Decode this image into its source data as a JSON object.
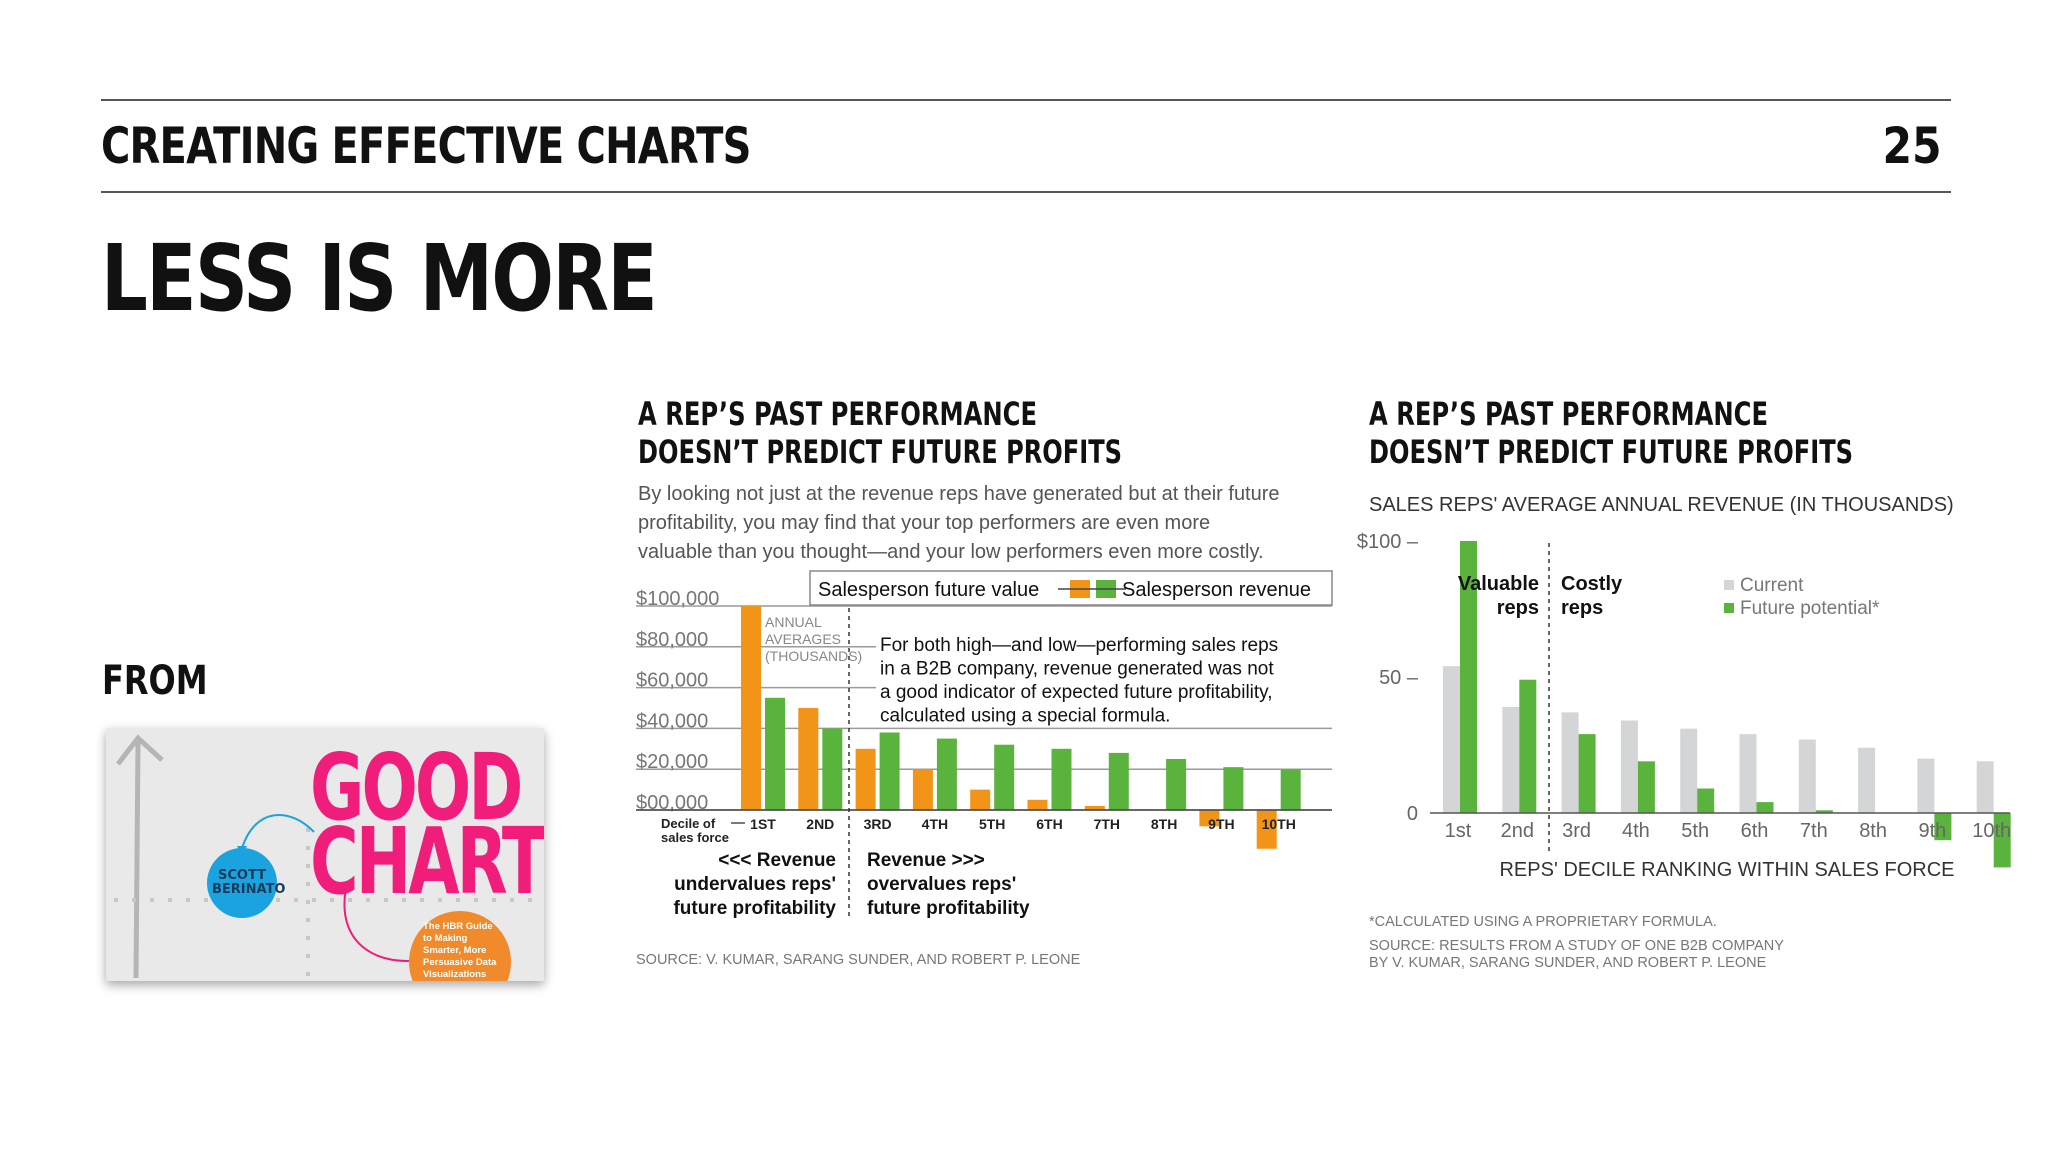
{
  "header": {
    "title": "CREATING EFFECTIVE CHARTS",
    "page_number": "25"
  },
  "slide": {
    "title": "LESS IS MORE",
    "from_label": "FROM"
  },
  "book": {
    "title_line1": "GOOD",
    "title_line2": "CHARTS",
    "author": "SCOTT BERINATO",
    "subtitle": "The HBR Guide to Making Smarter, More Persuasive Data Visualizations"
  },
  "colors": {
    "orange": "#f29418",
    "green": "#5ab33c",
    "gray": "#d3d5d7",
    "pink": "#f01d7b",
    "blue": "#1aa3df"
  },
  "chart_data": [
    {
      "type": "bar",
      "title": "A REP'S PAST PERFORMANCE DOESN'T PREDICT FUTURE PROFITS",
      "title_lines": [
        "A REP’S PAST PERFORMANCE",
        "DOESN’T PREDICT FUTURE PROFITS"
      ],
      "subtitle_lines": [
        "By looking not just at the revenue reps have generated but at their future",
        "profitability, you may find that your top performers are even more",
        "valuable than you thought—and your low performers even more costly."
      ],
      "legend": {
        "left": "Salesperson future value",
        "right": "Salesperson revenue"
      },
      "y_tick_labels": [
        "$100,000",
        "$80,000",
        "$60,000",
        "$40,000",
        "$20,000",
        "$00,000"
      ],
      "y_ticks": [
        100000,
        80000,
        60000,
        40000,
        20000,
        0
      ],
      "ylim": [
        -20000,
        100000
      ],
      "categories": [
        "1ST",
        "2ND",
        "3RD",
        "4TH",
        "5TH",
        "6TH",
        "7TH",
        "8TH",
        "9TH",
        "10TH"
      ],
      "x_axis_label": "Decile of sales force",
      "series": [
        {
          "name": "Salesperson future value",
          "color": "#f29418",
          "values": [
            100000,
            50000,
            30000,
            20000,
            10000,
            5000,
            2000,
            0,
            -8000,
            -19000
          ]
        },
        {
          "name": "Salesperson revenue",
          "color": "#5ab33c",
          "values": [
            55000,
            40000,
            38000,
            35000,
            32000,
            30000,
            28000,
            25000,
            21000,
            20000
          ]
        }
      ],
      "annotation_small": [
        "ANNUAL",
        "AVERAGES",
        "(THOUSANDS)"
      ],
      "annotation_main": [
        "For both high—and low—performing sales reps",
        "in a B2B company, revenue generated was not",
        "a good indicator of expected future profitability,",
        "calculated using a special formula."
      ],
      "left_note": [
        "<<< Revenue",
        "undervalues reps'",
        "future profitability"
      ],
      "right_note": [
        "Revenue >>>",
        "overvalues reps'",
        "future profitability"
      ],
      "source": "SOURCE: V. KUMAR, SARANG SUNDER, AND ROBERT P. LEONE"
    },
    {
      "type": "bar",
      "title": "A REP'S PAST PERFORMANCE DOESN'T PREDICT FUTURE PROFITS",
      "title_lines": [
        "A REP’S PAST PERFORMANCE",
        "DOESN’T PREDICT FUTURE PROFITS"
      ],
      "subtitle": "SALES REPS' AVERAGE ANNUAL REVENUE (IN THOUSANDS)",
      "y_tick_labels": [
        "$100 –",
        "50 –",
        "0"
      ],
      "y_ticks": [
        100,
        50,
        0
      ],
      "ylim": [
        -20,
        100
      ],
      "categories": [
        "1st",
        "2nd",
        "3rd",
        "4th",
        "5th",
        "6th",
        "7th",
        "8th",
        "9th",
        "10th"
      ],
      "xlabel": "REPS' DECILE RANKING WITHIN SALES FORCE",
      "series": [
        {
          "name": "Current",
          "color": "#d3d5d7",
          "values": [
            54,
            39,
            37,
            34,
            31,
            29,
            27,
            24,
            20,
            19
          ]
        },
        {
          "name": "Future potential*",
          "color": "#5ab33c",
          "values": [
            100,
            49,
            29,
            19,
            9,
            4,
            1,
            0,
            -10,
            -20
          ]
        }
      ],
      "legend_labels": [
        "Current",
        "Future potential*"
      ],
      "group_labels": [
        [
          "Valuable",
          "reps"
        ],
        [
          "Costly",
          "reps"
        ]
      ],
      "footnote": "*CALCULATED USING A PROPRIETARY FORMULA.",
      "source_lines": [
        "SOURCE: RESULTS FROM A STUDY OF ONE B2B COMPANY",
        "BY V. KUMAR, SARANG SUNDER, AND ROBERT P. LEONE"
      ]
    }
  ]
}
